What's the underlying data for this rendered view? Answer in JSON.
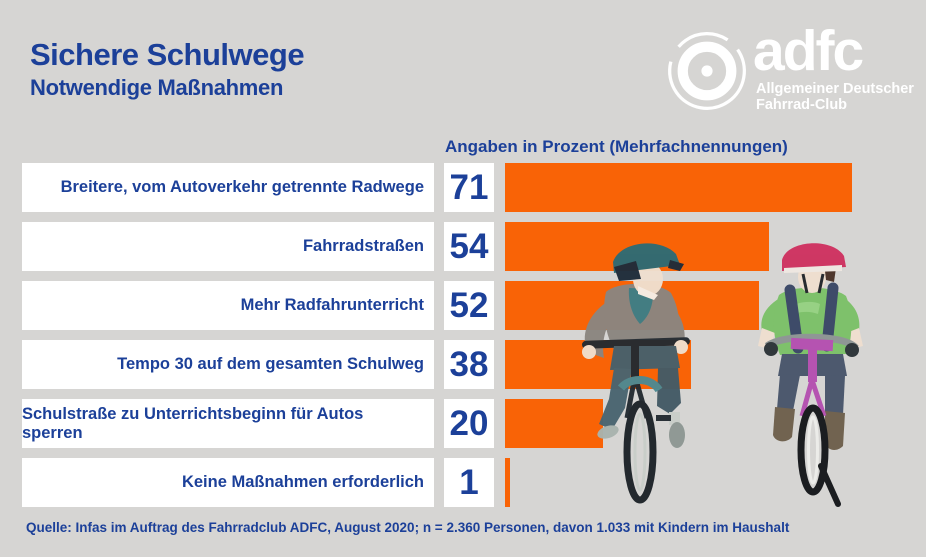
{
  "page": {
    "title": "Sichere Schulwege",
    "subtitle": "Notwendige Maßnahmen",
    "source": "Quelle: Infas im Auftrag des Fahrradclub ADFC, August 2020; n = 2.360 Personen, davon 1.033 mit Kindern im Haushalt"
  },
  "logo": {
    "brand": "adfc",
    "tagline_line1": "Allgemeiner Deutscher",
    "tagline_line2": "Fahrrad-Club"
  },
  "chart_data": {
    "type": "bar",
    "orientation": "horizontal",
    "title": "Sichere Schulwege – Notwendige Maßnahmen",
    "axis_note": "Angaben in Prozent (Mehrfachnennungen)",
    "unit": "%",
    "xlim": [
      0,
      100
    ],
    "grid": false,
    "legend": false,
    "categories": [
      "Breitere, vom Autoverkehr getrennte Radwege",
      "Fahrradstraßen",
      "Mehr Radfahrunterricht",
      "Tempo 30 auf dem gesamten Schulweg",
      "Schulstraße zu Unterrichtsbeginn für Autos sperren",
      "Keine Maßnahmen erforderlich"
    ],
    "values": [
      71,
      54,
      52,
      38,
      20,
      1
    ]
  },
  "colors": {
    "background": "#d6d5d3",
    "accent_orange": "#f96306",
    "text_blue": "#1c4099",
    "box_white": "#ffffff",
    "logo_white": "#ffffff"
  },
  "illustration": {
    "description": "two children riding bicycles toward viewer, watercolor style",
    "left_child": "teal helmet, grey jumper, grey-teal bike",
    "right_child": "pink helmet, green shirt, magenta bike"
  }
}
